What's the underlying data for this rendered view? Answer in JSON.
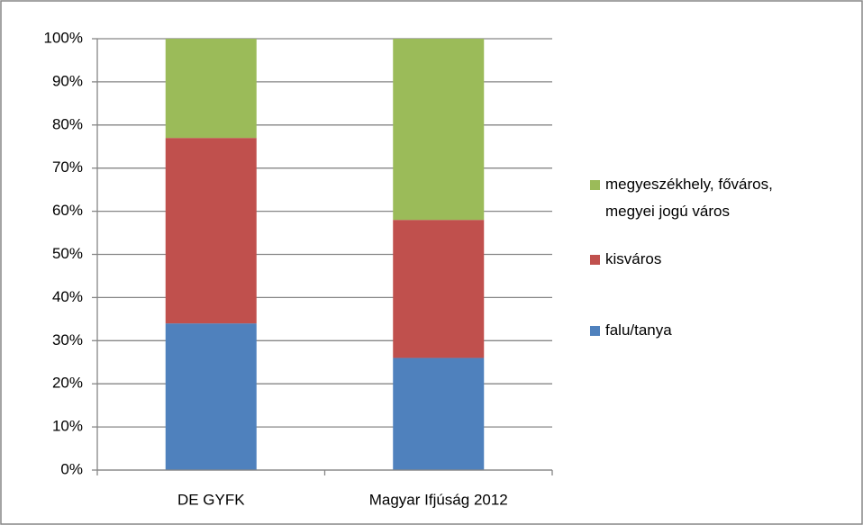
{
  "chart_data": {
    "type": "stacked_bar",
    "categories": [
      "DE GYFK",
      "Magyar Ifjúság 2012"
    ],
    "series": [
      {
        "name": "falu/tanya",
        "color": "#4f81bd",
        "values": [
          34,
          26
        ]
      },
      {
        "name": "kisváros",
        "color": "#c0504d",
        "values": [
          43,
          32
        ]
      },
      {
        "name": "megyeszékhely, főváros, megyei jogú város",
        "color": "#9bbb59",
        "values": [
          23,
          42
        ]
      }
    ],
    "ylim": [
      0,
      100
    ],
    "yticks": [
      {
        "value": 0,
        "label": "0%"
      },
      {
        "value": 10,
        "label": "10%"
      },
      {
        "value": 20,
        "label": "20%"
      },
      {
        "value": 30,
        "label": "30%"
      },
      {
        "value": 40,
        "label": "40%"
      },
      {
        "value": 50,
        "label": "50%"
      },
      {
        "value": 60,
        "label": "60%"
      },
      {
        "value": 70,
        "label": "70%"
      },
      {
        "value": 80,
        "label": "80%"
      },
      {
        "value": 90,
        "label": "90%"
      },
      {
        "value": 100,
        "label": "100%"
      }
    ],
    "grid": true,
    "legend": "right"
  }
}
